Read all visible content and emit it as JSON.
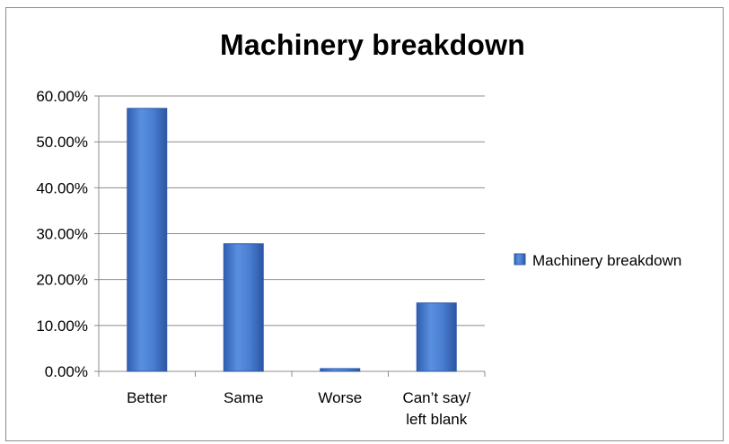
{
  "chart_data": {
    "type": "bar",
    "title": "Machinery breakdown",
    "categories": [
      [
        "Better"
      ],
      [
        "Same"
      ],
      [
        "Worse"
      ],
      [
        "Can’t say/",
        "left blank"
      ]
    ],
    "series": [
      {
        "name": "Machinery breakdown",
        "values": [
          0.573,
          0.278,
          0.006,
          0.149
        ]
      }
    ],
    "ylim": [
      0,
      0.6
    ],
    "yticks": [
      0,
      0.1,
      0.2,
      0.3,
      0.4,
      0.5,
      0.6
    ],
    "ytick_labels": [
      "0.00%",
      "10.00%",
      "20.00%",
      "30.00%",
      "40.00%",
      "50.00%",
      "60.00%"
    ],
    "xlabel": "",
    "ylabel": "",
    "grid": true,
    "legend_position": "right",
    "colors": {
      "bar_fill": "#4a7ed1",
      "bar_edge": "#2e5aa8",
      "gridline": "#8c8c8c",
      "text": "#000000"
    }
  }
}
